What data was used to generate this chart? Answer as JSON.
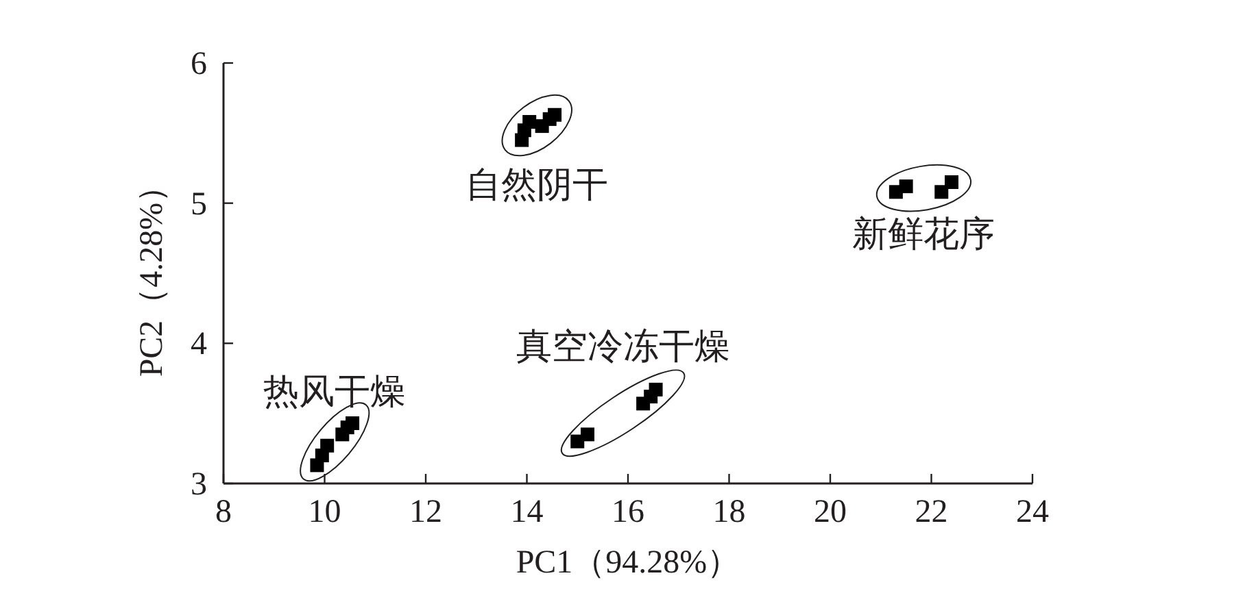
{
  "chart_data": {
    "type": "scatter",
    "xlabel": "PC1（94.28%）",
    "ylabel": "PC2（4.28%）",
    "xlim": [
      8,
      24
    ],
    "ylim": [
      3,
      6
    ],
    "xticks": [
      8,
      10,
      12,
      14,
      16,
      18,
      20,
      22,
      24
    ],
    "yticks": [
      3,
      4,
      5,
      6
    ],
    "marker": "square",
    "grid": false,
    "series": [
      {
        "name": "热风干燥",
        "color": "#000000",
        "x": [
          9.85,
          9.95,
          10.05,
          10.35,
          10.45,
          10.55
        ],
        "values": [
          3.13,
          3.2,
          3.27,
          3.35,
          3.4,
          3.43
        ]
      },
      {
        "name": "自然阴干",
        "color": "#000000",
        "x": [
          13.9,
          13.95,
          14.05,
          14.3,
          14.45,
          14.55
        ],
        "values": [
          5.45,
          5.52,
          5.58,
          5.55,
          5.6,
          5.63
        ]
      },
      {
        "name": "真空冷冻干燥",
        "color": "#000000",
        "x": [
          15.0,
          15.2,
          16.3,
          16.45,
          16.55
        ],
        "values": [
          3.3,
          3.35,
          3.57,
          3.62,
          3.67
        ]
      },
      {
        "name": "新鲜花序",
        "color": "#000000",
        "x": [
          21.3,
          21.5,
          22.2,
          22.4
        ],
        "values": [
          5.08,
          5.12,
          5.08,
          5.15
        ]
      }
    ]
  }
}
